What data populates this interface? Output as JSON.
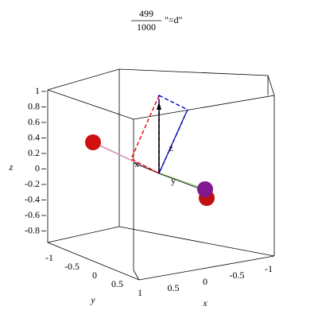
{
  "title": {
    "numerator": "499",
    "denominator": "1000",
    "suffix": "\"=d\""
  },
  "axes": {
    "z": {
      "label": "z",
      "ticks": [
        "1",
        "0.8",
        "0.6",
        "0.4",
        "0.2",
        "0",
        "-0.2",
        "-0.4",
        "-0.6",
        "-0.8"
      ]
    },
    "y": {
      "label": "y",
      "ticks": [
        "-1",
        "-0.5",
        "0",
        "0.5",
        "1"
      ]
    },
    "x": {
      "label": "x",
      "ticks": [
        "0.5",
        "0",
        "-0.5",
        "-1"
      ]
    }
  },
  "vector_labels": [
    "x",
    "y",
    "z"
  ]
}
